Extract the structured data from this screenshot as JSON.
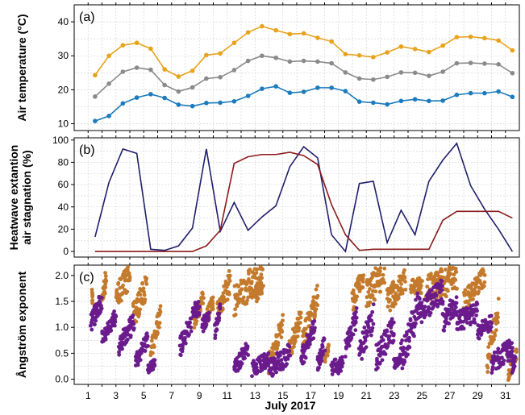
{
  "figure": {
    "xlabel": "July 2017"
  },
  "colors": {
    "max_temp": "#e8a21c",
    "mean_temp": "#8a8a8a",
    "min_temp": "#1b7bbd",
    "heatwave_extension": "#1f1f6b",
    "air_stagnation": "#8b1a1a",
    "angstrom_a": "#c47a2c",
    "angstrom_b": "#6a1b8c"
  },
  "chart_data": [
    {
      "panel_label": "(a)",
      "type": "line",
      "ylabel": "Air temperature (°C)",
      "xlim": [
        0,
        32
      ],
      "ylim": [
        8,
        45
      ],
      "yticks": [
        10,
        20,
        30,
        40
      ],
      "xticks": [
        1,
        3,
        5,
        7,
        9,
        11,
        13,
        15,
        17,
        19,
        21,
        23,
        25,
        27,
        29,
        31
      ],
      "x": [
        1.5,
        2.5,
        3.5,
        4.5,
        5.5,
        6.5,
        7.5,
        8.5,
        9.5,
        10.5,
        11.5,
        12.5,
        13.5,
        14.5,
        15.5,
        16.5,
        17.5,
        18.5,
        19.5,
        20.5,
        21.5,
        22.5,
        23.5,
        24.5,
        25.5,
        26.5,
        27.5,
        28.5,
        29.5,
        30.5,
        31.5
      ],
      "series": [
        {
          "values": [
            24.3,
            30.0,
            33.1,
            33.8,
            32.1,
            26.0,
            23.9,
            25.6,
            30.2,
            30.7,
            33.8,
            36.9,
            38.7,
            37.5,
            36.4,
            36.6,
            35.3,
            34.2,
            30.5,
            30.1,
            29.6,
            31.0,
            32.7,
            32.0,
            31.1,
            33.0,
            35.5,
            35.6,
            35.2,
            34.5,
            31.6
          ]
        },
        {
          "values": [
            18.0,
            21.8,
            25.3,
            26.5,
            25.9,
            21.4,
            19.5,
            20.7,
            23.3,
            23.7,
            25.8,
            28.5,
            30.0,
            29.4,
            28.3,
            28.5,
            28.3,
            27.8,
            25.1,
            23.3,
            23.0,
            23.8,
            25.1,
            25.0,
            24.1,
            25.3,
            27.8,
            27.9,
            27.7,
            27.5,
            24.9
          ]
        },
        {
          "values": [
            10.8,
            12.3,
            16.0,
            17.7,
            18.7,
            17.6,
            15.6,
            15.2,
            16.1,
            16.2,
            16.6,
            18.2,
            20.3,
            21.0,
            19.1,
            19.4,
            20.6,
            20.6,
            19.6,
            16.5,
            16.2,
            15.7,
            16.7,
            17.2,
            16.7,
            16.8,
            18.5,
            19.0,
            19.0,
            19.5,
            17.9
          ]
        }
      ]
    },
    {
      "panel_label": "(b)",
      "type": "line",
      "ylabel": "Heatwave extantion\nair stagnation (%)",
      "xlim": [
        0,
        32
      ],
      "ylim": [
        -5,
        102
      ],
      "yticks": [
        0,
        20,
        40,
        60,
        80,
        100
      ],
      "xticks": [
        1,
        3,
        5,
        7,
        9,
        11,
        13,
        15,
        17,
        19,
        21,
        23,
        25,
        27,
        29,
        31
      ],
      "series": [
        {
          "x": [
            1.5,
            2.5,
            3.5,
            4.5,
            5.5,
            6.5,
            7.5,
            8.5,
            9.5,
            10.5,
            11.5,
            12.5,
            13.5,
            14.5,
            15.5,
            16.5,
            17.5,
            18.5,
            19.5,
            20.5,
            21.5,
            22.5,
            23.5,
            24.5,
            25.5,
            26.5,
            27.5,
            28.5,
            29.5,
            30.5,
            31.5
          ],
          "values": [
            13,
            62,
            92,
            88,
            2,
            1,
            5,
            21,
            92,
            18,
            44,
            19,
            31,
            41,
            76,
            94,
            84,
            15,
            0,
            61,
            63,
            8,
            37,
            15,
            63,
            82,
            97,
            59,
            38,
            20,
            0
          ]
        },
        {
          "x": [
            1.5,
            2.5,
            3.5,
            4.5,
            5.5,
            6.5,
            7.5,
            8.5,
            9.5,
            10.5,
            11.5,
            12.5,
            13.5,
            14.5,
            15.5,
            16.5,
            17.5,
            18.5,
            19.5,
            20.5,
            21.5,
            22.5,
            23.5,
            24.5,
            25.5,
            26.5,
            27.5,
            28.5,
            29.5,
            30.5,
            31.5
          ],
          "values": [
            0,
            0,
            0,
            0,
            0,
            0,
            0,
            0,
            5,
            19,
            79,
            85,
            87,
            87,
            89,
            86,
            78,
            42,
            15,
            1,
            2,
            2,
            2,
            2,
            2,
            28,
            36,
            36,
            36,
            36,
            30
          ]
        }
      ]
    },
    {
      "panel_label": "(c)",
      "type": "scatter",
      "ylabel": "Ångström exponent",
      "xlim": [
        0,
        32
      ],
      "ylim": [
        -0.1,
        2.2
      ],
      "yticks": [
        0.0,
        0.5,
        1.0,
        1.5,
        2.0
      ],
      "ytick_labels": [
        "0.0",
        "0.5",
        "1.0",
        "1.5",
        "2.0"
      ],
      "xticks": [
        1,
        3,
        5,
        7,
        9,
        11,
        13,
        15,
        17,
        19,
        21,
        23,
        25,
        27,
        29,
        31
      ],
      "series": [
        {
          "segments": [
            [
              1.3,
              1.3,
              1.6,
              1.6,
              0.3
            ],
            [
              2.0,
              2.3,
              1.5,
              2.0,
              0.4
            ],
            [
              3.0,
              4.0,
              1.6,
              2.0,
              0.5
            ],
            [
              4.2,
              5.2,
              1.2,
              1.8,
              0.5
            ],
            [
              5.5,
              6.2,
              0.5,
              1.3,
              0.4
            ],
            [
              8.6,
              9.3,
              1.1,
              1.6,
              0.3
            ],
            [
              9.5,
              10.0,
              1.2,
              1.5,
              0.3
            ],
            [
              10.3,
              11.2,
              1.3,
              1.9,
              0.5
            ],
            [
              11.5,
              13.6,
              1.5,
              2.1,
              0.6
            ],
            [
              13.0,
              13.5,
              1.6,
              1.8,
              0.3
            ],
            [
              14.0,
              15.0,
              0.3,
              1.1,
              0.4
            ],
            [
              15.5,
              16.3,
              0.6,
              1.2,
              0.4
            ],
            [
              16.4,
              17.5,
              0.7,
              1.6,
              0.5
            ],
            [
              18.0,
              18.3,
              0.4,
              0.6,
              0.2
            ],
            [
              20.0,
              20.8,
              1.5,
              2.0,
              0.4
            ],
            [
              21.0,
              22.3,
              1.6,
              2.1,
              0.6
            ],
            [
              22.5,
              23.8,
              1.5,
              1.9,
              0.5
            ],
            [
              24.2,
              25.0,
              1.8,
              1.8,
              0.3
            ],
            [
              25.3,
              27.5,
              1.7,
              2.0,
              0.6
            ],
            [
              28.0,
              29.5,
              1.5,
              2.0,
              0.4
            ],
            [
              29.7,
              30.5,
              0.3,
              1.4,
              0.5
            ],
            [
              31.2,
              31.8,
              0.1,
              0.5,
              0.3
            ]
          ]
        },
        {
          "segments": [
            [
              1.2,
              2.0,
              1.1,
              1.5,
              0.4
            ],
            [
              2.0,
              3.0,
              0.8,
              1.2,
              0.3
            ],
            [
              3.2,
              4.3,
              0.6,
              1.1,
              0.4
            ],
            [
              4.4,
              5.3,
              0.3,
              0.8,
              0.3
            ],
            [
              5.3,
              5.8,
              0.2,
              0.3,
              0.2
            ],
            [
              7.6,
              8.4,
              0.6,
              1.1,
              0.4
            ],
            [
              8.5,
              9.0,
              1.3,
              1.4,
              0.3
            ],
            [
              9.2,
              9.7,
              1.0,
              1.3,
              0.3
            ],
            [
              10.1,
              10.5,
              0.9,
              1.4,
              0.3
            ],
            [
              11.5,
              12.5,
              0.2,
              0.6,
              0.3
            ],
            [
              12.8,
              14.0,
              0.2,
              0.4,
              0.3
            ],
            [
              14.0,
              15.5,
              0.2,
              0.5,
              0.4
            ],
            [
              16.3,
              17.3,
              0.4,
              1.0,
              0.4
            ],
            [
              17.5,
              18.0,
              0.3,
              0.7,
              0.3
            ],
            [
              18.5,
              19.3,
              0.2,
              0.3,
              0.3
            ],
            [
              19.5,
              20.3,
              0.6,
              1.2,
              0.4
            ],
            [
              20.5,
              21.5,
              0.5,
              1.2,
              0.5
            ],
            [
              21.7,
              23.0,
              0.4,
              1.0,
              0.5
            ],
            [
              23.0,
              23.5,
              0.3,
              0.4,
              0.2
            ],
            [
              23.5,
              25.0,
              0.4,
              1.6,
              0.6
            ],
            [
              25.0,
              26.5,
              1.3,
              1.7,
              0.5
            ],
            [
              26.5,
              27.5,
              1.1,
              1.5,
              0.4
            ],
            [
              27.5,
              29.0,
              1.1,
              1.3,
              0.4
            ],
            [
              29.0,
              30.0,
              0.9,
              1.1,
              0.3
            ],
            [
              30.0,
              31.5,
              0.3,
              0.6,
              0.4
            ],
            [
              31.5,
              31.7,
              0.2,
              0.4,
              0.2
            ]
          ]
        }
      ]
    }
  ]
}
